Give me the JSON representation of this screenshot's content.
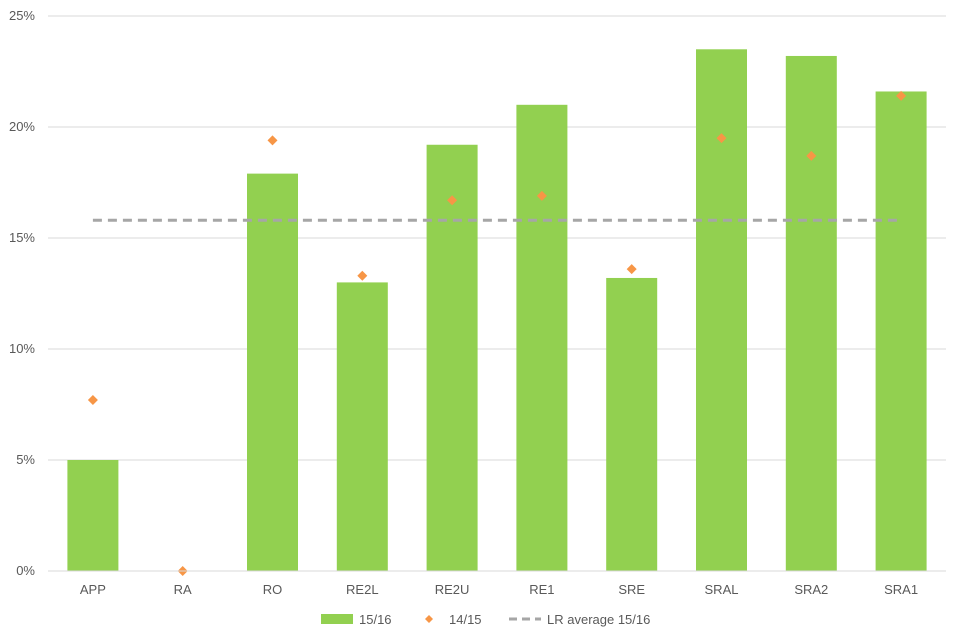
{
  "chart_data": {
    "type": "bar",
    "categories": [
      "APP",
      "RA",
      "RO",
      "RE2L",
      "RE2U",
      "RE1",
      "SRE",
      "SRAL",
      "SRA2",
      "SRA1"
    ],
    "series": [
      {
        "name": "15/16",
        "kind": "bar",
        "color": "#92d050",
        "values": [
          5.0,
          0.0,
          17.9,
          13.0,
          19.2,
          21.0,
          13.2,
          23.5,
          23.2,
          21.6
        ]
      },
      {
        "name": "14/15",
        "kind": "scatter",
        "marker": "diamond",
        "color": "#f79646",
        "values": [
          7.7,
          0.0,
          19.4,
          13.3,
          16.7,
          16.9,
          13.6,
          19.5,
          18.7,
          21.4
        ]
      },
      {
        "name": "LR average 15/16",
        "kind": "line",
        "style": "dashed",
        "color": "#a6a6a6",
        "value": 15.8
      }
    ],
    "y_ticks": [
      "0%",
      "5%",
      "10%",
      "15%",
      "20%",
      "25%"
    ],
    "ylim": [
      0,
      25
    ],
    "y_unit": "%",
    "grid": true,
    "legend_position": "bottom",
    "title": "",
    "xlabel": "",
    "ylabel": ""
  }
}
